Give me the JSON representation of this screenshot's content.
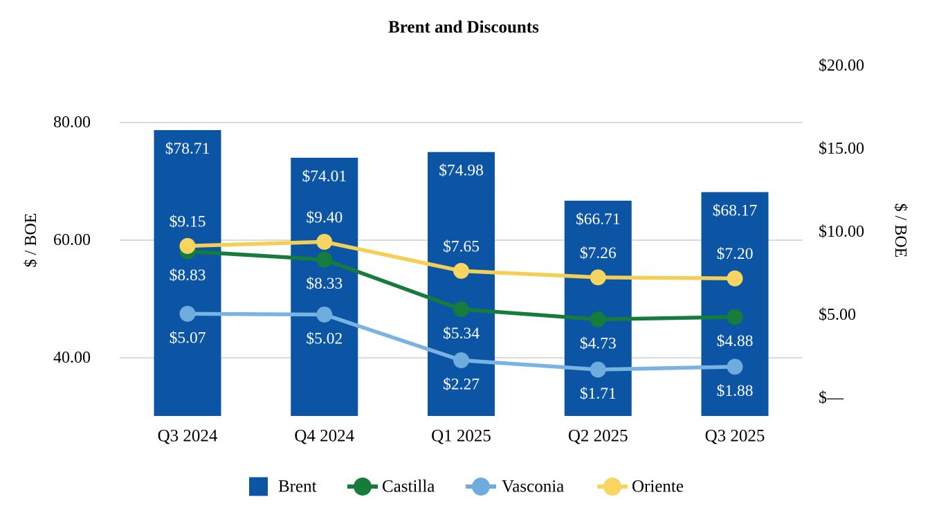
{
  "chart_data": {
    "type": "bar",
    "subtype": "combo-bar-line-dual-axis",
    "title": "Brent and Discounts",
    "categories": [
      "Q3 2024",
      "Q4 2024",
      "Q1 2025",
      "Q2 2025",
      "Q3 2025"
    ],
    "bar_series": {
      "name": "Brent",
      "axis": "left",
      "color": "#0B55A4",
      "values": [
        78.71,
        74.01,
        74.98,
        66.71,
        68.17
      ],
      "labels": [
        "$78.71",
        "$74.01",
        "$74.98",
        "$66.71",
        "$68.17"
      ]
    },
    "line_series": [
      {
        "name": "Castilla",
        "axis": "right",
        "line_color": "#157C3C",
        "dot_color": "#157C3C",
        "values": [
          8.83,
          8.33,
          5.34,
          4.73,
          4.88
        ],
        "labels": [
          "$8.83",
          "$8.33",
          "$5.34",
          "$4.73",
          "$4.88"
        ],
        "label_side": "below"
      },
      {
        "name": "Vasconia",
        "axis": "right",
        "line_color": "#79B3E3",
        "dot_color": "#6FACDE",
        "values": [
          5.07,
          5.02,
          2.27,
          1.71,
          1.88
        ],
        "labels": [
          "$5.07",
          "$5.02",
          "$2.27",
          "$1.71",
          "$1.88"
        ],
        "label_side": "below"
      },
      {
        "name": "Oriente",
        "axis": "right",
        "line_color": "#F5CF55",
        "dot_color": "#F7D560",
        "values": [
          9.15,
          9.4,
          7.65,
          7.26,
          7.2
        ],
        "labels": [
          "$9.15",
          "$9.40",
          "$7.65",
          "$7.26",
          "$7.20"
        ],
        "label_side": "above"
      }
    ],
    "left_axis": {
      "title": "$ / BOE",
      "min": 30,
      "max": 90,
      "ticks": [
        {
          "value": 40,
          "label": "40.00"
        },
        {
          "value": 60,
          "label": "60.00"
        },
        {
          "value": 80,
          "label": "80.00"
        }
      ]
    },
    "right_axis": {
      "title": "$ / BOE",
      "min": 0,
      "max": 20,
      "ticks": [
        {
          "value": 0,
          "label": "$—"
        },
        {
          "value": 5,
          "label": "$5.00"
        },
        {
          "value": 10,
          "label": "$10.00"
        },
        {
          "value": 15,
          "label": "$15.00"
        },
        {
          "value": 20,
          "label": "$20.00"
        }
      ]
    },
    "legend": [
      {
        "name": "Brent",
        "marker": "square",
        "color": "#0B55A4"
      },
      {
        "name": "Castilla",
        "marker": "dot",
        "color": "#157C3C"
      },
      {
        "name": "Vasconia",
        "marker": "dot",
        "color": "#6FACDE"
      },
      {
        "name": "Oriente",
        "marker": "dot",
        "color": "#F7D560"
      }
    ],
    "grid": true,
    "grid_color": "#DADADA",
    "value_label_color": "#FFFFFF",
    "legend_position": "bottom"
  }
}
